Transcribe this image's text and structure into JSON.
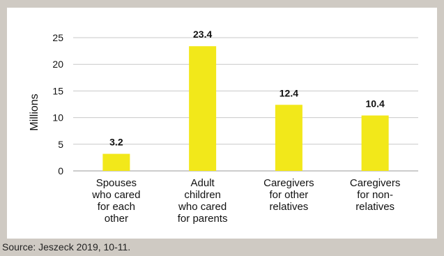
{
  "chart_data": {
    "type": "bar",
    "categories": [
      [
        "Spouses",
        "who cared",
        "for each",
        "other"
      ],
      [
        "Adult",
        "children",
        "who cared",
        "for parents"
      ],
      [
        "Caregivers",
        "for other",
        "relatives"
      ],
      [
        "Caregivers",
        "for non-",
        "relatives"
      ]
    ],
    "values": [
      3.2,
      23.4,
      12.4,
      10.4
    ],
    "data_labels": [
      "3.2",
      "23.4",
      "12.4",
      "10.4"
    ],
    "ylabel": "Millions",
    "ylim": [
      0,
      25
    ],
    "yticks": [
      0,
      5,
      10,
      15,
      20,
      25
    ],
    "grid": true,
    "bar_color": "#f2e81a",
    "grid_color": "#c8c8c8"
  },
  "source": "Source: Jeszeck 2019, 10-11."
}
